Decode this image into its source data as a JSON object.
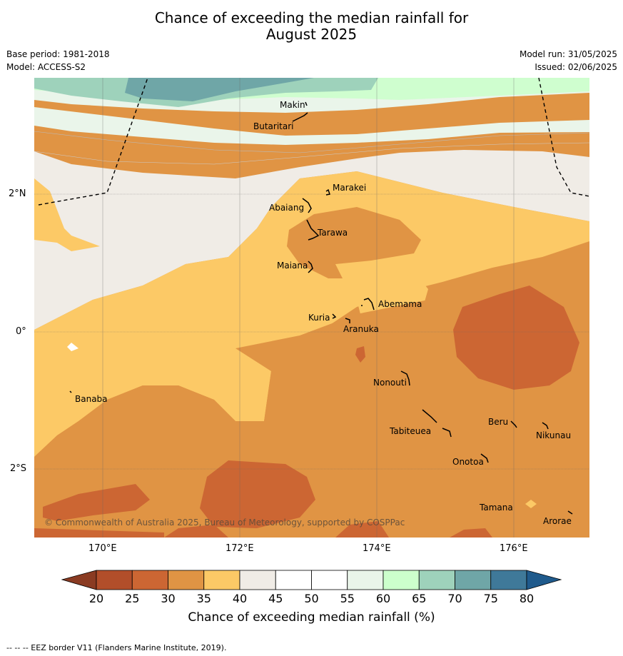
{
  "title_line1": "Chance of exceeding the median rainfall for",
  "title_line2": "August 2025",
  "base_period": "Base period: 1981-2018",
  "model": "Model: ACCESS-S2",
  "model_run": "Model run: 31/05/2025",
  "issued": "Issued: 02/06/2025",
  "copyright": "© Commonwealth of Australia 2025, Bureau of Meteorology, supported by COSPPac",
  "lat_labels": [
    "2°N",
    "0°",
    "2°S"
  ],
  "lon_labels": [
    "170°E",
    "172°E",
    "174°E",
    "176°E"
  ],
  "places": [
    {
      "name": "Makin"
    },
    {
      "name": "Butaritari"
    },
    {
      "name": "Marakei"
    },
    {
      "name": "Abaiang"
    },
    {
      "name": "Tarawa"
    },
    {
      "name": "Maiana"
    },
    {
      "name": "Abemama"
    },
    {
      "name": "Kuria"
    },
    {
      "name": "Aranuka"
    },
    {
      "name": "Banaba"
    },
    {
      "name": "Nonouti"
    },
    {
      "name": "Beru"
    },
    {
      "name": "Tabiteuea"
    },
    {
      "name": "Nikunau"
    },
    {
      "name": "Onotoa"
    },
    {
      "name": "Tamana"
    },
    {
      "name": "Arorae"
    }
  ],
  "colorbar": {
    "ticks": [
      "20",
      "25",
      "30",
      "35",
      "40",
      "45",
      "50",
      "55",
      "60",
      "65",
      "70",
      "75",
      "80"
    ],
    "colors": [
      "#b24e2a",
      "#cc6633",
      "#e09444",
      "#fcc966",
      "#f0ece6",
      "#ffffff",
      "#ffffff",
      "#eaf5ea",
      "#ccffcc",
      "#9ed2bb",
      "#6fa6a7",
      "#3f7999"
    ],
    "under_color": "#8a3b22",
    "over_color": "#1f5a8c",
    "label": "Chance of exceeding median rainfall (%)"
  },
  "footer": "--  --  -- EEZ border V11 (Flanders Marine Institute, 2019)."
}
